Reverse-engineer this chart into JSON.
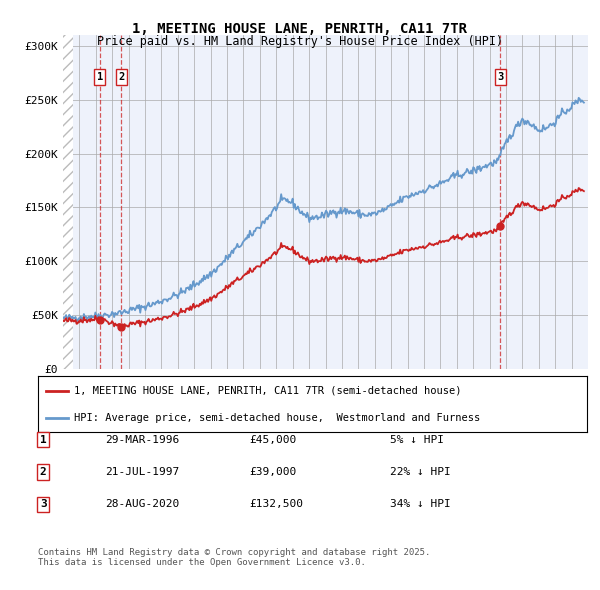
{
  "title": "1, MEETING HOUSE LANE, PENRITH, CA11 7TR",
  "subtitle": "Price paid vs. HM Land Registry's House Price Index (HPI)",
  "xlim_start": 1994.0,
  "xlim_end": 2026.0,
  "ylim_bottom": 0,
  "ylim_top": 310000,
  "yticks": [
    0,
    50000,
    100000,
    150000,
    200000,
    250000,
    300000
  ],
  "ytick_labels": [
    "£0",
    "£50K",
    "£100K",
    "£150K",
    "£200K",
    "£250K",
    "£300K"
  ],
  "sale_dates": [
    1996.24,
    1997.55,
    2020.66
  ],
  "sale_prices": [
    45000,
    39000,
    132500
  ],
  "sale_labels": [
    "1",
    "2",
    "3"
  ],
  "hpi_color": "#6699cc",
  "price_color": "#cc2222",
  "legend_line1": "1, MEETING HOUSE LANE, PENRITH, CA11 7TR (semi-detached house)",
  "legend_line2": "HPI: Average price, semi-detached house,  Westmorland and Furness",
  "table_data": [
    [
      "1",
      "29-MAR-1996",
      "£45,000",
      "5% ↓ HPI"
    ],
    [
      "2",
      "21-JUL-1997",
      "£39,000",
      "22% ↓ HPI"
    ],
    [
      "3",
      "28-AUG-2020",
      "£132,500",
      "34% ↓ HPI"
    ]
  ],
  "footnote": "Contains HM Land Registry data © Crown copyright and database right 2025.\nThis data is licensed under the Open Government Licence v3.0.",
  "bg_color": "#eef2fb",
  "grid_color": "#aaaaaa",
  "hpi_anchor_years": [
    1994.0,
    1994.5,
    1995.0,
    1995.5,
    1996.0,
    1996.5,
    1997.0,
    1997.5,
    1998.0,
    1998.5,
    1999.0,
    1999.5,
    2000.0,
    2000.5,
    2001.0,
    2001.5,
    2002.0,
    2002.5,
    2003.0,
    2003.5,
    2004.0,
    2004.5,
    2005.0,
    2005.5,
    2006.0,
    2006.5,
    2007.0,
    2007.25,
    2007.5,
    2007.75,
    2008.0,
    2008.25,
    2008.5,
    2008.75,
    2009.0,
    2009.5,
    2010.0,
    2010.5,
    2011.0,
    2011.5,
    2012.0,
    2012.5,
    2013.0,
    2013.5,
    2014.0,
    2014.5,
    2015.0,
    2015.5,
    2016.0,
    2016.5,
    2017.0,
    2017.5,
    2018.0,
    2018.5,
    2019.0,
    2019.5,
    2020.0,
    2020.5,
    2021.0,
    2021.5,
    2022.0,
    2022.5,
    2023.0,
    2023.5,
    2024.0,
    2024.5,
    2025.0,
    2025.5
  ],
  "hpi_anchor_prices": [
    47000,
    47500,
    48000,
    48500,
    49000,
    50000,
    51000,
    52000,
    54000,
    56000,
    58000,
    60000,
    63000,
    66000,
    69000,
    73000,
    78000,
    83000,
    88000,
    95000,
    103000,
    111000,
    118000,
    125000,
    133000,
    141000,
    150000,
    155000,
    157000,
    156000,
    154000,
    150000,
    146000,
    143000,
    140000,
    141000,
    143000,
    146000,
    147000,
    146000,
    144000,
    143000,
    144000,
    147000,
    151000,
    156000,
    160000,
    163000,
    166000,
    169000,
    172000,
    176000,
    180000,
    182000,
    184000,
    187000,
    190000,
    193000,
    210000,
    222000,
    232000,
    228000,
    222000,
    224000,
    230000,
    238000,
    244000,
    250000
  ]
}
